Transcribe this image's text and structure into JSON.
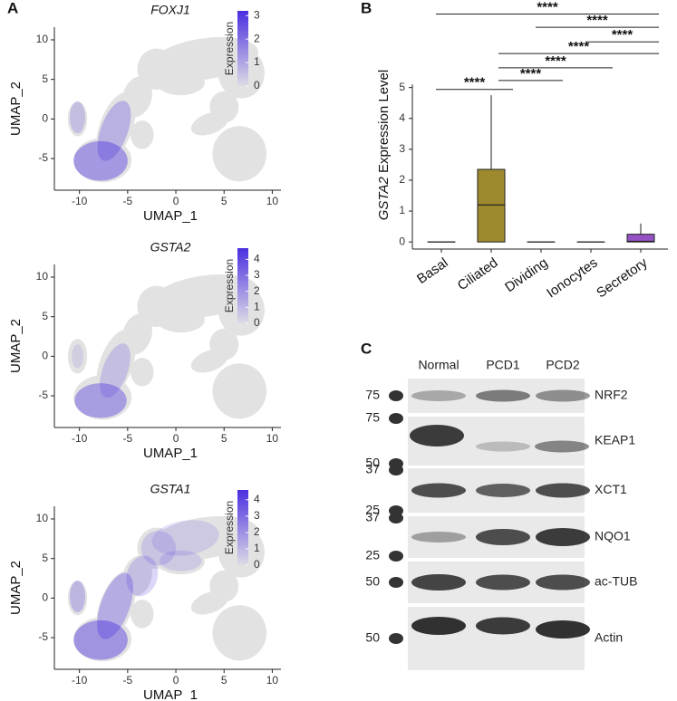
{
  "panel_labels": [
    "A",
    "B",
    "C"
  ],
  "chart_data": [
    {
      "type": "umap",
      "title": "FOXJ1",
      "xlabel": "UMAP_1",
      "ylabel": "UMAP_2",
      "xlim": [
        -12.6,
        10.9
      ],
      "ylim": [
        -9,
        11.6
      ],
      "xticks": [
        -10,
        -5,
        0,
        5,
        10
      ],
      "yticks": [
        -5,
        0,
        5,
        10
      ],
      "colorbar": {
        "label": "Expression",
        "lim": [
          0,
          3.2
        ],
        "ticks": [
          0,
          1,
          2,
          3
        ],
        "colors": [
          "#dedbe6",
          "#4a2fe0"
        ]
      }
    },
    {
      "type": "umap",
      "title": "GSTA2",
      "xlabel": "UMAP_1",
      "ylabel": "UMAP_2",
      "xlim": [
        -12.6,
        10.9
      ],
      "ylim": [
        -9,
        11.6
      ],
      "xticks": [
        -10,
        -5,
        0,
        5,
        10
      ],
      "yticks": [
        -5,
        0,
        5,
        10
      ],
      "colorbar": {
        "label": "Expression",
        "lim": [
          0,
          4.7
        ],
        "ticks": [
          0,
          1,
          2,
          3,
          4
        ],
        "colors": [
          "#dedbe6",
          "#4a2fe0"
        ]
      }
    },
    {
      "type": "umap",
      "title": "GSTA1",
      "xlabel": "UMAP_1",
      "ylabel": "UMAP_2",
      "xlim": [
        -12.6,
        10.9
      ],
      "ylim": [
        -9,
        11.6
      ],
      "xticks": [
        -10,
        -5,
        0,
        5,
        10
      ],
      "yticks": [
        -5,
        0,
        5,
        10
      ],
      "colorbar": {
        "label": "Expression",
        "lim": [
          0,
          4.6
        ],
        "ticks": [
          0,
          1,
          2,
          3,
          4
        ],
        "colors": [
          "#dedbe6",
          "#4a2fe0"
        ]
      }
    },
    {
      "type": "box",
      "ylabel_gene": "GSTA2",
      "ylabel_rest": "Expression Level",
      "categories": [
        "Basal",
        "Ciliated",
        "Dividing",
        "Ionocytes",
        "Secretory"
      ],
      "colors": [
        "#3a3a3a",
        "#9e8a2e",
        "#3a3a3a",
        "#3a3a3a",
        "#9452c4"
      ],
      "boxes": [
        {
          "min": 0,
          "q1": 0,
          "median": 0,
          "q3": 0,
          "max": 0
        },
        {
          "min": 0,
          "q1": 0,
          "median": 1.2,
          "q3": 2.35,
          "max": 4.75
        },
        {
          "min": 0,
          "q1": 0,
          "median": 0,
          "q3": 0,
          "max": 0
        },
        {
          "min": 0,
          "q1": 0,
          "median": 0,
          "q3": 0,
          "max": 0
        },
        {
          "min": 0,
          "q1": 0,
          "median": 0.02,
          "q3": 0.25,
          "max": 0.6
        }
      ],
      "ylim": [
        -0.23,
        7.6
      ],
      "yticks": [
        0,
        1,
        2,
        3,
        4,
        5
      ],
      "comparisons": [
        {
          "from": 0,
          "to": 1,
          "y": 4.94,
          "label": "****"
        },
        {
          "from": 1,
          "to": 2,
          "y": 5.23,
          "label": "****"
        },
        {
          "from": 1,
          "to": 3,
          "y": 5.64,
          "label": "****"
        },
        {
          "from": 1,
          "to": 4,
          "y": 6.1,
          "label": "****"
        },
        {
          "from": 3,
          "to": 4,
          "y": 6.48,
          "label": "****"
        },
        {
          "from": 2,
          "to": 4,
          "y": 6.95,
          "label": "****"
        },
        {
          "from": 0,
          "to": 4,
          "y": 7.38,
          "label": "****"
        }
      ]
    }
  ],
  "blot": {
    "lanes": [
      "Normal",
      "PCD1",
      "PCD2"
    ],
    "rows": [
      {
        "name": "NRF2",
        "markers": [
          75
        ]
      },
      {
        "name": "KEAP1",
        "markers": [
          75,
          50
        ]
      },
      {
        "name": "XCT1",
        "markers": [
          37,
          25
        ]
      },
      {
        "name": "NQO1",
        "markers": [
          37,
          25
        ]
      },
      {
        "name": "ac-TUB",
        "markers": [
          50
        ]
      },
      {
        "name": "Actin",
        "markers": [
          50
        ]
      }
    ]
  }
}
